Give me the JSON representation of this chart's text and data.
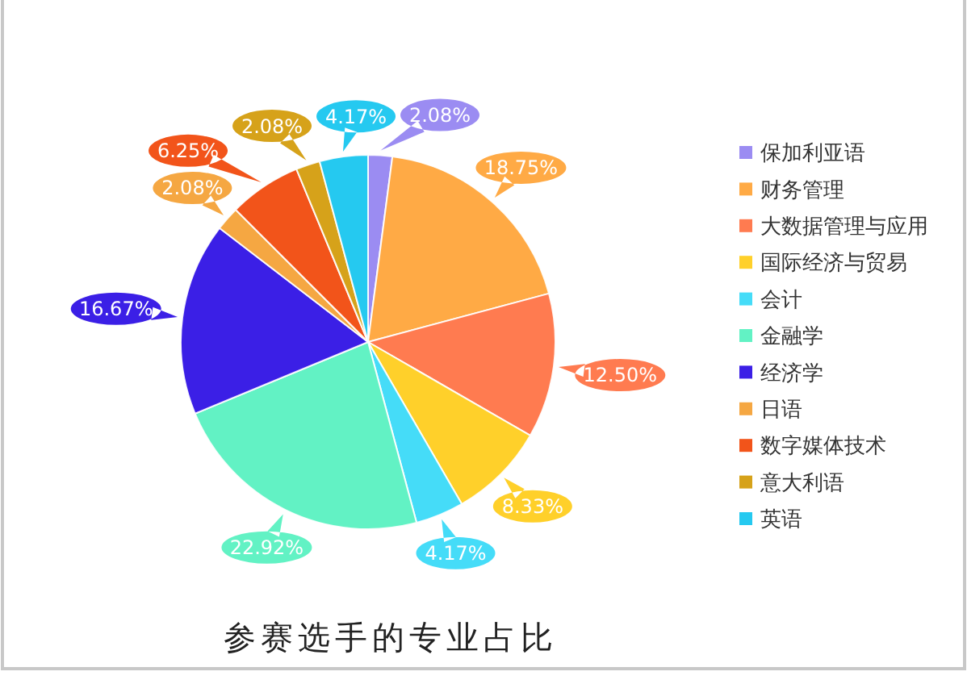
{
  "chart_data": {
    "type": "pie",
    "title": "参赛选手的专业占比",
    "categories": [
      "保加利亚语",
      "财务管理",
      "大数据管理与应用",
      "国际经济与贸易",
      "会计",
      "金融学",
      "经济学",
      "日语",
      "数字媒体技术",
      "意大利语",
      "英语"
    ],
    "values": [
      2.08,
      18.75,
      12.5,
      8.33,
      4.17,
      22.92,
      16.67,
      2.08,
      6.25,
      2.08,
      4.17
    ],
    "colors": [
      "#9b8cf2",
      "#ffaa45",
      "#ff7b50",
      "#ffd02a",
      "#45dcf8",
      "#62f2c4",
      "#3b1fe6",
      "#f5a742",
      "#f2541a",
      "#d6a21a",
      "#25c9f0"
    ],
    "value_labels": [
      "2.08%",
      "18.75%",
      "12.50%",
      "8.33%",
      "4.17%",
      "22.92%",
      "16.67%",
      "2.08%",
      "6.25%",
      "2.08%",
      "4.17%"
    ],
    "legend": "right"
  }
}
